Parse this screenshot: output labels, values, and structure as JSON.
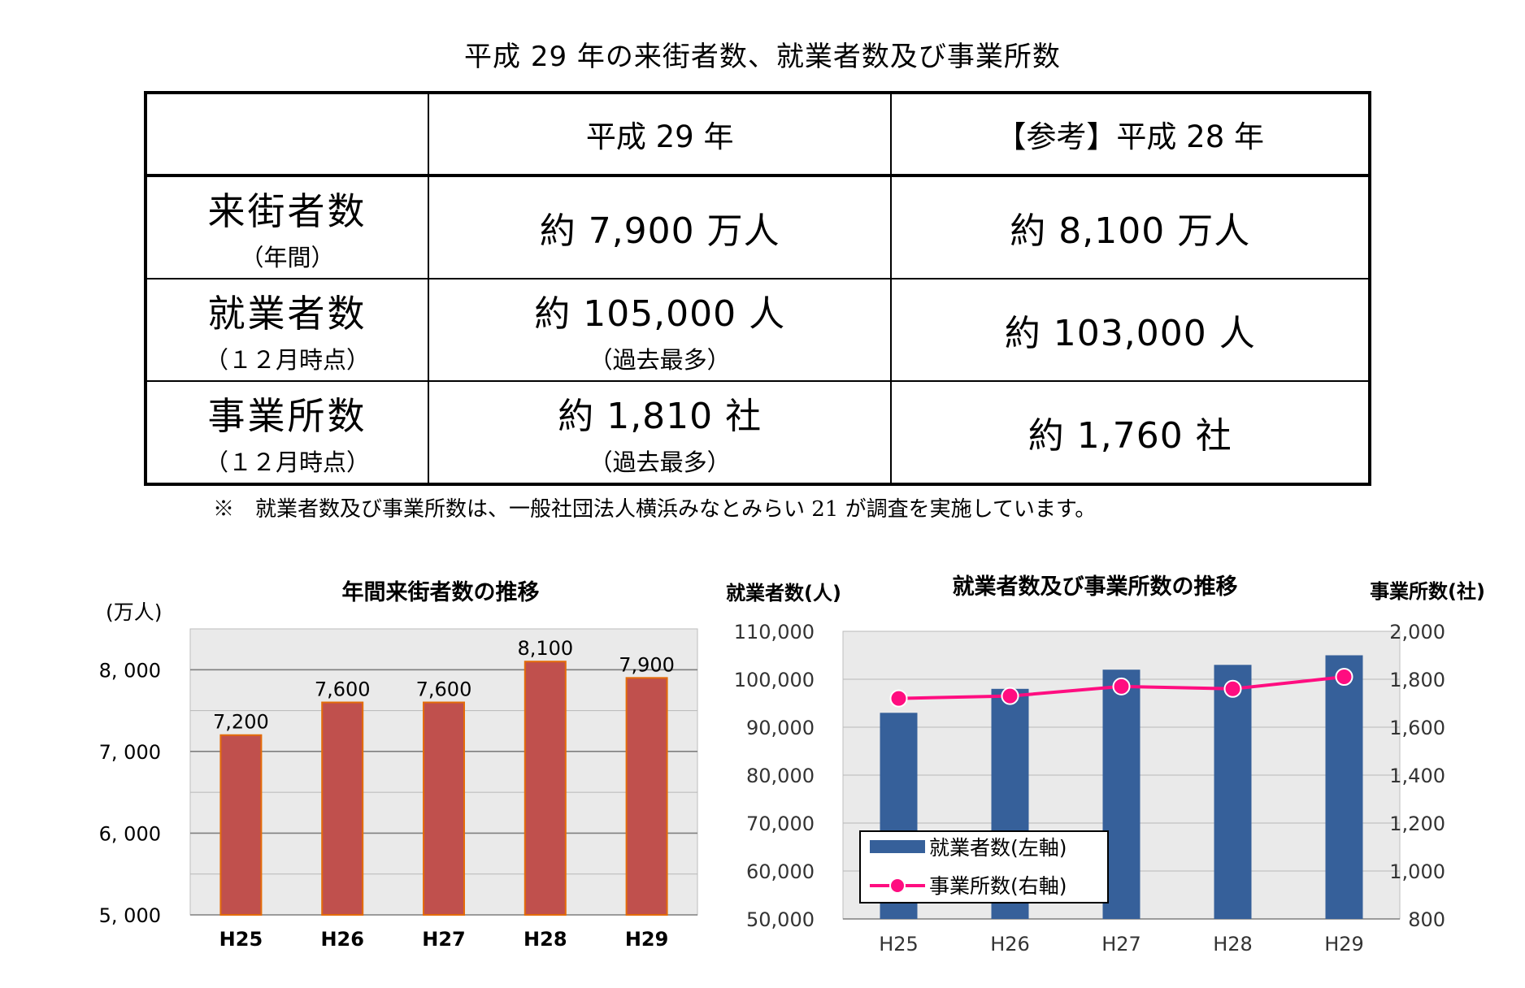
{
  "title": "平成 29 年の来街者数、就業者数及び事業所数",
  "table": {
    "headers": [
      "",
      "平成 29 年",
      "【参考】平成 28 年"
    ],
    "rows": [
      {
        "label": "来街者数",
        "sub": "（年間）",
        "h29": "約 7,900 万人",
        "h29_sub": "",
        "h28": "約 8,100 万人"
      },
      {
        "label": "就業者数",
        "sub": "（１２月時点）",
        "h29": "約 105,000 人",
        "h29_sub": "（過去最多）",
        "h28": "約 103,000 人"
      },
      {
        "label": "事業所数",
        "sub": "（１２月時点）",
        "h29": "約 1,810 社",
        "h29_sub": "（過去最多）",
        "h28": "約 1,760 社"
      }
    ]
  },
  "note": "※　就業者数及び事業所数は、一般社団法人横浜みなとみらい 21 が調査を実施しています。",
  "chart_data": [
    {
      "type": "bar",
      "title": "年間来街者数の推移",
      "ylabel": "(万人)",
      "categories": [
        "H25",
        "H26",
        "H27",
        "H28",
        "H29"
      ],
      "values": [
        7200,
        7600,
        7600,
        8100,
        7900
      ],
      "value_labels": [
        "7,200",
        "7,600",
        "7,600",
        "8,100",
        "7,900"
      ],
      "ylim": [
        5000,
        8500
      ],
      "yticks": [
        5000,
        6000,
        7000,
        8000
      ],
      "ytick_labels": [
        "5, 000",
        "6, 000",
        "7, 000",
        "8, 000"
      ],
      "colors": {
        "bar": "#c0504d",
        "bar_edge": "#e46c0a",
        "plot_bg": "#eaeaea",
        "grid": "#9c9c9c"
      }
    },
    {
      "type": "bar+line",
      "title": "就業者数及び事業所数の推移",
      "ylabel_left": "就業者数(人)",
      "ylabel_right": "事業所数(社)",
      "categories": [
        "H25",
        "H26",
        "H27",
        "H28",
        "H29"
      ],
      "series": [
        {
          "name": "就業者数(左軸)",
          "type": "bar",
          "axis": "left",
          "values": [
            93000,
            98000,
            102000,
            103000,
            105000
          ]
        },
        {
          "name": "事業所数(右軸)",
          "type": "line",
          "axis": "right",
          "values": [
            1720,
            1730,
            1770,
            1760,
            1810
          ]
        }
      ],
      "ylim_left": [
        50000,
        110000
      ],
      "ylim_right": [
        800,
        2000
      ],
      "yticks_left": [
        50000,
        60000,
        70000,
        80000,
        90000,
        100000,
        110000
      ],
      "ytick_labels_left": [
        "50,000",
        "60,000",
        "70,000",
        "80,000",
        "90,000",
        "100,000",
        "110,000"
      ],
      "yticks_right": [
        800,
        1000,
        1200,
        1400,
        1600,
        1800,
        2000
      ],
      "ytick_labels_right": [
        "800",
        "1,000",
        "1,200",
        "1,400",
        "1,600",
        "1,800",
        "2,000"
      ],
      "colors": {
        "bar": "#36609a",
        "line": "#ff0d80",
        "marker_fill": "#ff0d80",
        "plot_bg": "#eaeaea",
        "grid": "#9c9c9c"
      }
    }
  ]
}
